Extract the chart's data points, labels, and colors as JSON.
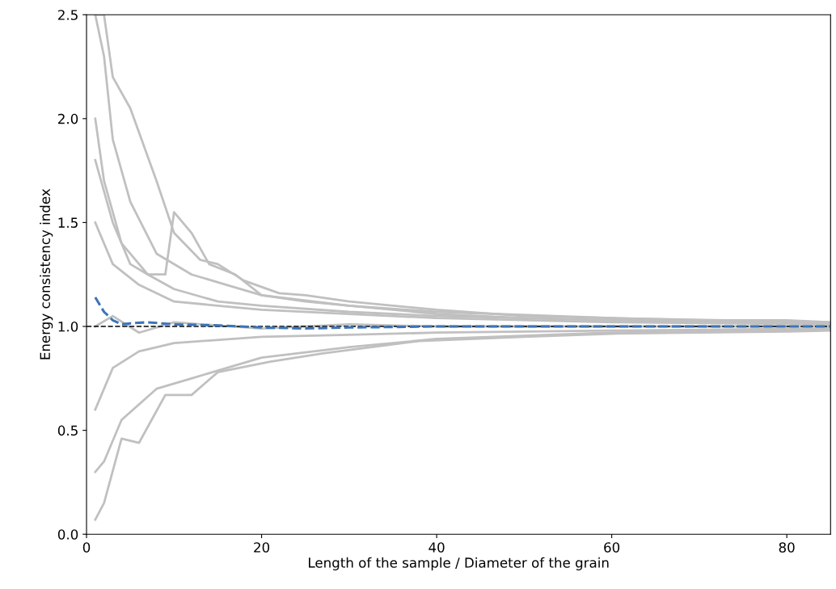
{
  "chart_data": {
    "type": "line",
    "xlabel": "Length of the sample / Diameter of the grain",
    "ylabel": "Energy consistency index",
    "xlim": [
      0,
      85
    ],
    "xticks": [
      0,
      20,
      40,
      60,
      80
    ],
    "ylim": [
      0,
      2.5
    ],
    "yticks": [
      {
        "value": 0,
        "label": "0.0"
      },
      0.5,
      {
        "value": 1,
        "label": "1.0"
      },
      1.5,
      {
        "value": 2,
        "label": "2.0"
      },
      2.5
    ],
    "grid": false,
    "marker": "none",
    "series": [
      {
        "color": "#c0c0c0",
        "line_style": "solid",
        "x": [
          1,
          2,
          3,
          5,
          8,
          10,
          13,
          15,
          18,
          22,
          25,
          30,
          40,
          50,
          60,
          70,
          80,
          85
        ],
        "values": [
          2.5,
          2.5,
          2.2,
          2.05,
          1.7,
          1.45,
          1.32,
          1.3,
          1.22,
          1.16,
          1.15,
          1.12,
          1.08,
          1.05,
          1.04,
          1.03,
          1.03,
          1.02
        ]
      },
      {
        "color": "#c0c0c0",
        "line_style": "solid",
        "x": [
          1,
          3,
          5,
          7,
          9,
          10,
          12,
          14,
          17,
          20,
          25,
          30,
          40,
          50,
          60,
          70,
          80,
          85
        ],
        "values": [
          1.8,
          1.5,
          1.3,
          1.25,
          1.25,
          1.55,
          1.45,
          1.3,
          1.25,
          1.15,
          1.12,
          1.1,
          1.06,
          1.04,
          1.03,
          1.02,
          1.02,
          1.01
        ]
      },
      {
        "color": "#c0c0c0",
        "line_style": "solid",
        "x": [
          1,
          2,
          3,
          5,
          8,
          12,
          16,
          20,
          30,
          40,
          60,
          85
        ],
        "values": [
          2.5,
          2.3,
          1.9,
          1.6,
          1.35,
          1.25,
          1.2,
          1.15,
          1.1,
          1.07,
          1.04,
          1.02
        ]
      },
      {
        "color": "#c0c0c0",
        "line_style": "solid",
        "x": [
          1,
          2,
          4,
          7,
          10,
          15,
          20,
          30,
          40,
          60,
          85
        ],
        "values": [
          2.0,
          1.7,
          1.4,
          1.25,
          1.18,
          1.12,
          1.1,
          1.07,
          1.05,
          1.03,
          1.01
        ]
      },
      {
        "color": "#c0c0c0",
        "line_style": "solid",
        "x": [
          1,
          3,
          6,
          10,
          15,
          20,
          30,
          40,
          60,
          85
        ],
        "values": [
          1.5,
          1.3,
          1.2,
          1.12,
          1.1,
          1.08,
          1.06,
          1.04,
          1.02,
          1.01
        ]
      },
      {
        "color": "#c0c0c0",
        "line_style": "solid",
        "x": [
          1,
          3,
          6,
          10,
          20,
          30,
          40,
          60,
          85
        ],
        "values": [
          1.0,
          1.05,
          0.97,
          1.02,
          0.99,
          1.01,
          1.0,
          1.0,
          1.0
        ]
      },
      {
        "color": "#c0c0c0",
        "line_style": "solid",
        "x": [
          1,
          3,
          6,
          10,
          20,
          30,
          40,
          60,
          85
        ],
        "values": [
          0.6,
          0.8,
          0.88,
          0.92,
          0.95,
          0.96,
          0.97,
          0.98,
          0.99
        ]
      },
      {
        "color": "#c0c0c0",
        "line_style": "solid",
        "x": [
          1,
          2,
          4,
          8,
          12,
          20,
          30,
          40,
          60,
          85
        ],
        "values": [
          0.3,
          0.35,
          0.55,
          0.7,
          0.75,
          0.85,
          0.9,
          0.94,
          0.97,
          0.985
        ]
      },
      {
        "color": "#c0c0c0",
        "line_style": "solid",
        "x": [
          1,
          2,
          4,
          6,
          9,
          12,
          15,
          21,
          27,
          38,
          50,
          60,
          70,
          80,
          85
        ],
        "values": [
          0.07,
          0.15,
          0.46,
          0.44,
          0.67,
          0.67,
          0.78,
          0.83,
          0.87,
          0.93,
          0.95,
          0.965,
          0.97,
          0.975,
          0.98
        ]
      },
      {
        "color": "#3a75b8",
        "line_style": "dashed",
        "x": [
          1,
          2,
          3,
          4,
          5,
          7,
          10,
          15,
          20,
          25,
          30,
          40,
          60,
          85
        ],
        "values": [
          1.14,
          1.07,
          1.03,
          1.01,
          1.015,
          1.02,
          1.01,
          1.005,
          0.995,
          0.99,
          0.995,
          1.0,
          1.0,
          1.0
        ]
      }
    ],
    "ref_lines": [
      {
        "axis": "y",
        "value": 1.0,
        "color": "#000000",
        "line_style": "dashed"
      }
    ]
  }
}
